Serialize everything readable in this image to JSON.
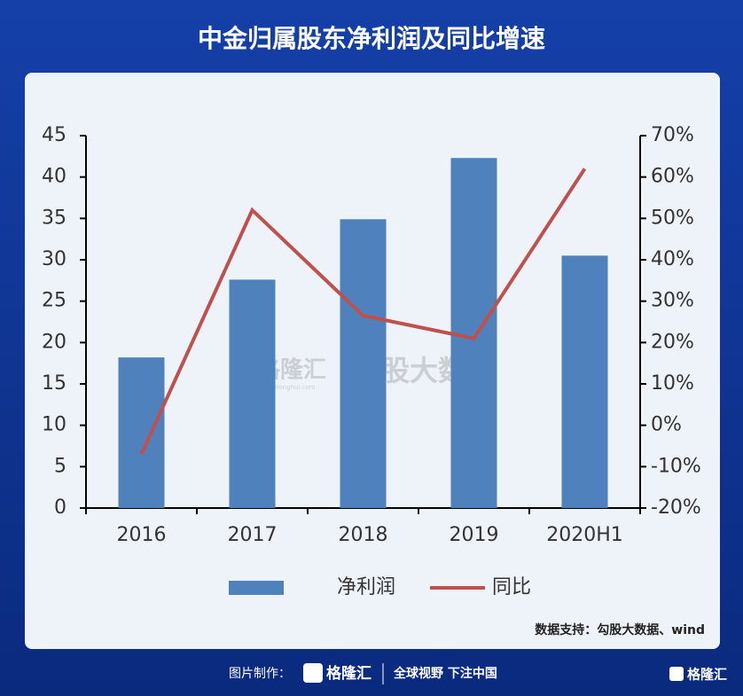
{
  "chart_data": {
    "type": "bar",
    "title": "中金归属股东净利润及同比增速",
    "categories": [
      "2016",
      "2017",
      "2018",
      "2019",
      "2020H1"
    ],
    "series": [
      {
        "name": "净利润",
        "type": "bar",
        "color": "#4f81bd",
        "values": [
          18.2,
          27.6,
          34.9,
          42.3,
          30.5
        ]
      },
      {
        "name": "同比",
        "type": "line",
        "axis": "y2",
        "color": "#c0504d",
        "values": [
          -7,
          52,
          26.5,
          21,
          62
        ]
      }
    ],
    "ylim": [
      0,
      45
    ],
    "yticks": [
      0,
      5,
      10,
      15,
      20,
      25,
      30,
      35,
      40,
      45
    ],
    "y2lim": [
      -20,
      70
    ],
    "y2ticks": [
      {
        "value": -20,
        "label": "-20%"
      },
      {
        "value": -10,
        "label": "-10%"
      },
      {
        "value": 0,
        "label": "0%"
      },
      {
        "value": 10,
        "label": "10%"
      },
      {
        "value": 20,
        "label": "20%"
      },
      {
        "value": 30,
        "label": "30%"
      },
      {
        "value": 40,
        "label": "40%"
      },
      {
        "value": 50,
        "label": "50%"
      },
      {
        "value": 60,
        "label": "60%"
      },
      {
        "value": 70,
        "label": "70%"
      }
    ],
    "legend": "bottom",
    "source": "数据支持：勾股大数据、wind"
  },
  "watermark": {
    "brand": "格隆汇",
    "site": "www.gelonghui.com",
    "partner": "勾股大数据"
  },
  "footer": {
    "made_by": "图片制作：",
    "brand": "格隆汇",
    "slogan": "全球视野 下注中国",
    "corner_brand": "格隆汇"
  }
}
